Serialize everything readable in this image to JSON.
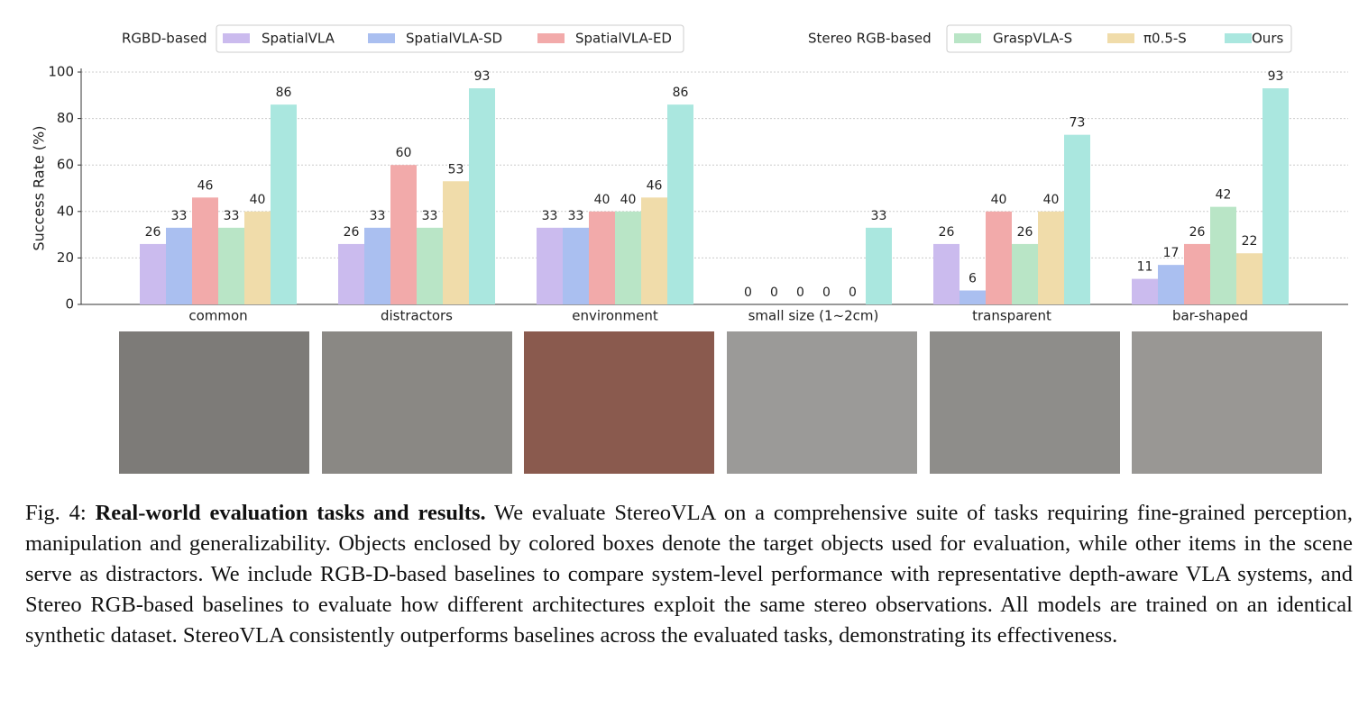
{
  "chart_data": {
    "type": "bar",
    "y_label": "Success Rate (%)",
    "legend_groups": [
      "RGBD-based",
      "Stereo RGB-based"
    ],
    "categories": [
      "common",
      "distractors",
      "environment",
      "small size (1~2cm)",
      "transparent",
      "bar-shaped"
    ],
    "series": [
      {
        "name": "SpatialVLA",
        "color": "#cbbbee",
        "values": [
          26,
          26,
          33,
          0,
          26,
          11
        ]
      },
      {
        "name": "SpatialVLA-SD",
        "color": "#aabff0",
        "values": [
          33,
          33,
          33,
          0,
          6,
          17
        ]
      },
      {
        "name": "SpatialVLA-ED",
        "color": "#f2aaaa",
        "values": [
          46,
          60,
          40,
          0,
          40,
          26
        ]
      },
      {
        "name": "GraspVLA-S",
        "color": "#b9e5c6",
        "values": [
          33,
          33,
          40,
          0,
          26,
          42
        ]
      },
      {
        "name": "π0.5-S",
        "color": "#f0dcaa",
        "values": [
          40,
          53,
          46,
          0,
          40,
          22
        ]
      },
      {
        "name": "Ours",
        "color": "#aae7df",
        "values": [
          86,
          93,
          86,
          33,
          73,
          93
        ]
      }
    ],
    "ylim": [
      0,
      100
    ],
    "yticks": [
      0,
      20,
      40,
      60,
      80,
      100
    ],
    "grid": true
  },
  "caption": {
    "label": "Fig. 4:",
    "title": "Real-world evaluation tasks and results.",
    "text": "We evaluate StereoVLA on a comprehensive suite of tasks requiring fine-grained perception, manipulation and generalizability. Objects enclosed by colored boxes denote the target objects used for evaluation, while other items in the scene serve as distractors. We include RGB-D-based baselines to compare system-level performance with representative depth-aware VLA systems, and Stereo RGB-based baselines to evaluate how different architectures exploit the same stereo observations. All models are trained on an identical synthetic dataset. StereoVLA consistently outperforms baselines across the evaluated tasks, demonstrating its effectiveness."
  }
}
